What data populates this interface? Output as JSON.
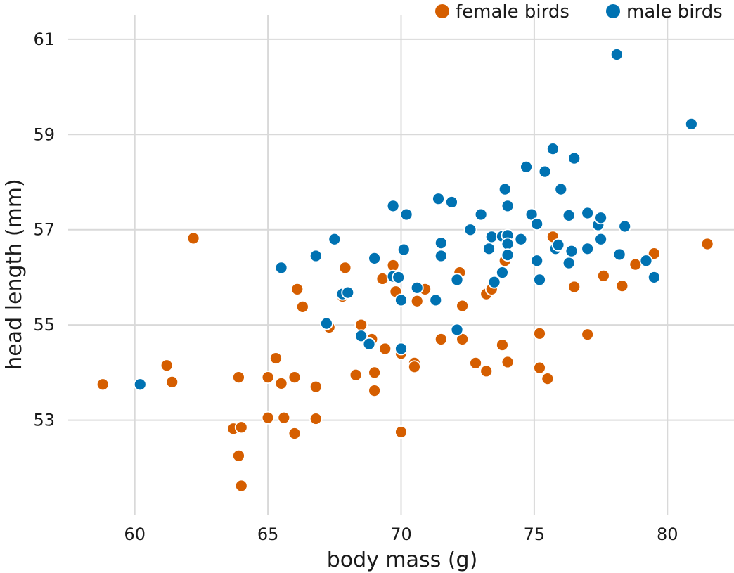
{
  "chart_data": {
    "type": "scatter",
    "title": "",
    "xlabel": "body mass (g)",
    "ylabel": "head length (mm)",
    "xlim": [
      57.5,
      82.5
    ],
    "ylim": [
      51.0,
      61.5
    ],
    "xticks": [
      60,
      65,
      70,
      75,
      80
    ],
    "yticks": [
      53,
      55,
      57,
      59,
      61
    ],
    "grid": true,
    "legend": "top-right",
    "series": [
      {
        "name": "female birds",
        "color": "#D55E00",
        "points": [
          [
            58.8,
            53.75
          ],
          [
            61.2,
            54.15
          ],
          [
            61.4,
            53.8
          ],
          [
            62.2,
            56.82
          ],
          [
            63.7,
            52.82
          ],
          [
            63.9,
            53.9
          ],
          [
            63.9,
            52.25
          ],
          [
            64.0,
            52.85
          ],
          [
            64.0,
            51.62
          ],
          [
            65.0,
            53.9
          ],
          [
            65.0,
            53.05
          ],
          [
            65.3,
            54.3
          ],
          [
            65.5,
            53.77
          ],
          [
            65.6,
            53.05
          ],
          [
            66.0,
            53.9
          ],
          [
            66.0,
            52.72
          ],
          [
            66.1,
            55.75
          ],
          [
            66.3,
            55.38
          ],
          [
            66.8,
            53.7
          ],
          [
            66.8,
            53.03
          ],
          [
            67.3,
            54.95
          ],
          [
            67.8,
            55.6
          ],
          [
            67.9,
            56.2
          ],
          [
            68.3,
            53.95
          ],
          [
            68.5,
            55.0
          ],
          [
            68.9,
            54.7
          ],
          [
            69.0,
            54.0
          ],
          [
            69.0,
            53.62
          ],
          [
            69.3,
            55.97
          ],
          [
            69.4,
            54.5
          ],
          [
            69.7,
            56.25
          ],
          [
            69.8,
            55.7
          ],
          [
            70.0,
            54.4
          ],
          [
            70.0,
            52.75
          ],
          [
            70.5,
            54.2
          ],
          [
            70.5,
            54.12
          ],
          [
            70.6,
            55.5
          ],
          [
            70.9,
            55.75
          ],
          [
            71.5,
            54.7
          ],
          [
            72.2,
            56.1
          ],
          [
            72.3,
            55.4
          ],
          [
            72.3,
            54.7
          ],
          [
            72.8,
            54.2
          ],
          [
            73.2,
            55.65
          ],
          [
            73.2,
            54.03
          ],
          [
            73.4,
            55.75
          ],
          [
            73.8,
            54.58
          ],
          [
            73.9,
            56.35
          ],
          [
            74.0,
            54.22
          ],
          [
            75.2,
            54.1
          ],
          [
            75.2,
            54.82
          ],
          [
            75.5,
            53.87
          ],
          [
            75.7,
            56.85
          ],
          [
            76.5,
            55.8
          ],
          [
            77.0,
            54.8
          ],
          [
            77.6,
            56.03
          ],
          [
            78.3,
            55.82
          ],
          [
            78.8,
            56.27
          ],
          [
            79.5,
            56.5
          ],
          [
            81.5,
            56.7
          ]
        ]
      },
      {
        "name": "male birds",
        "color": "#0072B2",
        "points": [
          [
            60.2,
            53.75
          ],
          [
            65.5,
            56.2
          ],
          [
            66.8,
            56.45
          ],
          [
            67.2,
            55.03
          ],
          [
            67.5,
            56.8
          ],
          [
            67.8,
            55.65
          ],
          [
            68.0,
            55.68
          ],
          [
            68.5,
            54.77
          ],
          [
            68.8,
            54.6
          ],
          [
            69.0,
            56.4
          ],
          [
            69.7,
            57.5
          ],
          [
            69.7,
            56.02
          ],
          [
            69.9,
            56.0
          ],
          [
            70.0,
            55.52
          ],
          [
            70.0,
            54.5
          ],
          [
            70.1,
            56.58
          ],
          [
            70.2,
            57.32
          ],
          [
            70.6,
            55.78
          ],
          [
            71.3,
            55.52
          ],
          [
            71.4,
            57.65
          ],
          [
            71.5,
            56.72
          ],
          [
            71.5,
            56.45
          ],
          [
            71.9,
            57.58
          ],
          [
            72.1,
            55.95
          ],
          [
            72.1,
            54.9
          ],
          [
            72.6,
            57.0
          ],
          [
            73.0,
            57.32
          ],
          [
            73.3,
            56.6
          ],
          [
            73.4,
            56.85
          ],
          [
            73.5,
            55.9
          ],
          [
            73.8,
            56.86
          ],
          [
            73.8,
            56.1
          ],
          [
            73.9,
            57.85
          ],
          [
            74.0,
            57.5
          ],
          [
            74.0,
            56.88
          ],
          [
            74.0,
            56.7
          ],
          [
            74.0,
            56.47
          ],
          [
            74.5,
            56.8
          ],
          [
            74.7,
            58.32
          ],
          [
            74.9,
            57.32
          ],
          [
            75.1,
            57.12
          ],
          [
            75.1,
            56.35
          ],
          [
            75.2,
            55.95
          ],
          [
            75.4,
            58.22
          ],
          [
            75.7,
            58.7
          ],
          [
            75.8,
            56.6
          ],
          [
            75.9,
            56.68
          ],
          [
            76.0,
            57.85
          ],
          [
            76.3,
            57.3
          ],
          [
            76.3,
            56.3
          ],
          [
            76.4,
            56.55
          ],
          [
            76.5,
            58.5
          ],
          [
            77.0,
            57.35
          ],
          [
            77.0,
            56.6
          ],
          [
            77.4,
            57.1
          ],
          [
            77.5,
            57.25
          ],
          [
            77.5,
            56.8
          ],
          [
            78.1,
            60.68
          ],
          [
            78.2,
            56.48
          ],
          [
            78.4,
            57.07
          ],
          [
            79.2,
            56.35
          ],
          [
            79.5,
            56.0
          ],
          [
            80.9,
            59.22
          ]
        ]
      }
    ]
  }
}
